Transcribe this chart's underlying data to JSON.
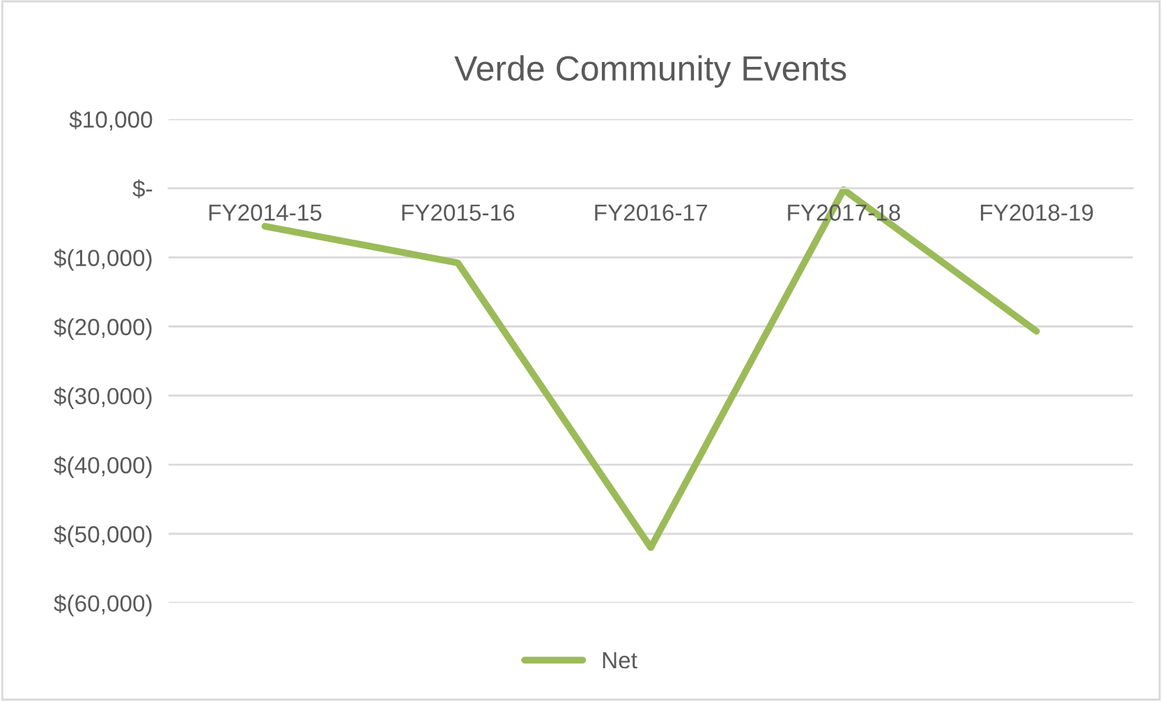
{
  "chart_data": {
    "type": "line",
    "title": "Verde Community Events",
    "categories": [
      "FY2014-15",
      "FY2015-16",
      "FY2016-17",
      "FY2017-18",
      "FY2018-19"
    ],
    "series": [
      {
        "name": "Net",
        "color": "#9bbb59",
        "values": [
          -5500,
          -10800,
          -52000,
          -200,
          -20700
        ]
      }
    ],
    "ylim": [
      -60000,
      10000
    ],
    "yticks": [
      {
        "value": -60000,
        "label": "$(60,000)"
      },
      {
        "value": -50000,
        "label": "$(50,000)"
      },
      {
        "value": -40000,
        "label": "$(40,000)"
      },
      {
        "value": -30000,
        "label": "$(30,000)"
      },
      {
        "value": -20000,
        "label": "$(20,000)"
      },
      {
        "value": -10000,
        "label": "$(10,000)"
      },
      {
        "value": 0,
        "label": "$-"
      },
      {
        "value": 10000,
        "label": "$10,000"
      }
    ],
    "grid": "y",
    "legend": "bottom",
    "marker": "none",
    "line_style": "solid"
  }
}
